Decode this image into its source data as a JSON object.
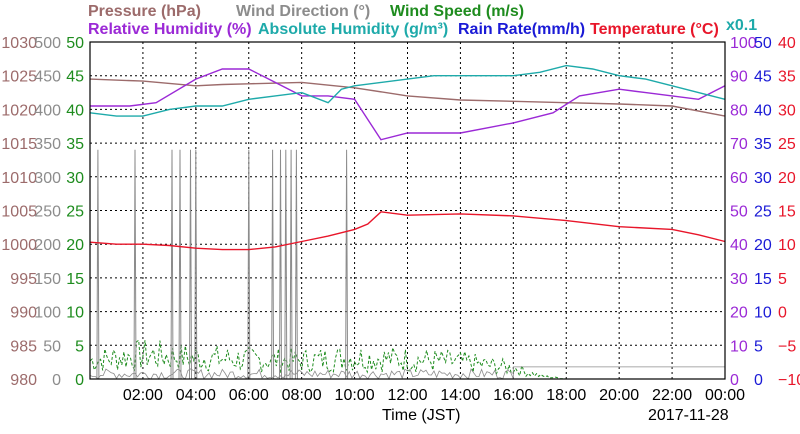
{
  "chart_data": {
    "type": "line",
    "xlabel": "Time (JST)",
    "date": "2017-11-28",
    "x_ticks": [
      "02:00",
      "04:00",
      "06:00",
      "08:00",
      "10:00",
      "12:00",
      "14:00",
      "16:00",
      "18:00",
      "20:00",
      "22:00",
      "00:00"
    ],
    "x_range_hours": [
      0,
      24
    ],
    "grid": true,
    "legend": {
      "row1": [
        {
          "label": "Pressure (hPa)",
          "color": "#9c6b6b"
        },
        {
          "label": "Wind Direction (°)",
          "color": "#8c8c8c"
        },
        {
          "label": "Wind Speed (m/s)",
          "color": "#1e8c1e"
        }
      ],
      "row2": [
        {
          "label": "Relative Humidity (%)",
          "color": "#9b29d6"
        },
        {
          "label": "Absolute Humidity (g/m³)",
          "color": "#1eaaaa"
        },
        {
          "label": "Rain Rate(mm/h)",
          "color": "#1a1ad6"
        },
        {
          "label": "Temperature (°C)",
          "color": "#e8162a"
        }
      ],
      "scale_note": "x0.1"
    },
    "axes": {
      "pressure": {
        "ticks": [
          "1030",
          "1025",
          "1020",
          "1015",
          "1010",
          "1005",
          "1000",
          "995",
          "990",
          "985",
          "980"
        ],
        "range": [
          980,
          1030
        ],
        "color": "#9c6b6b"
      },
      "wind_direction": {
        "ticks": [
          "500",
          "450",
          "400",
          "350",
          "300",
          "250",
          "200",
          "150",
          "100",
          "50",
          "0"
        ],
        "range": [
          0,
          500
        ],
        "color": "#8c8c8c"
      },
      "wind_speed": {
        "ticks": [
          "50",
          "45",
          "40",
          "35",
          "30",
          "25",
          "20",
          "15",
          "10",
          "5",
          "0"
        ],
        "range": [
          0,
          50
        ],
        "color": "#1e8c1e"
      },
      "relative_humidity": {
        "ticks": [
          "100",
          "90",
          "80",
          "70",
          "60",
          "50",
          "40",
          "30",
          "20",
          "10",
          "0"
        ],
        "range": [
          0,
          100
        ],
        "color": "#9b29d6"
      },
      "rain_rate": {
        "ticks": [
          "50",
          "45",
          "40",
          "35",
          "30",
          "25",
          "20",
          "15",
          "10",
          "5",
          "0"
        ],
        "range": [
          0,
          50
        ],
        "color": "#1a1ad6"
      },
      "temperature": {
        "ticks": [
          "40",
          "35",
          "30",
          "25",
          "20",
          "15",
          "10",
          "5",
          "0",
          "−5",
          "−10"
        ],
        "range": [
          -10,
          40
        ],
        "color": "#e8162a"
      }
    },
    "series": [
      {
        "name": "Pressure (hPa)",
        "axis": "pressure",
        "color": "#9c6b6b",
        "x": [
          0,
          2,
          4,
          5,
          6,
          8,
          10,
          12,
          14,
          16,
          18,
          20,
          22,
          24
        ],
        "y": [
          1024.5,
          1024.2,
          1023.5,
          1023.7,
          1023.8,
          1024,
          1023.2,
          1022,
          1021.4,
          1021.2,
          1021,
          1020.8,
          1020.5,
          1019
        ]
      },
      {
        "name": "Relative Humidity (%)",
        "axis": "relative_humidity",
        "color": "#9b29d6",
        "x": [
          0,
          1.5,
          2.5,
          4,
          5,
          6,
          7,
          8,
          9,
          10,
          10.5,
          11,
          12,
          14,
          16,
          17.5,
          18.5,
          20,
          21,
          22,
          23,
          24
        ],
        "y": [
          81,
          81,
          82,
          89,
          92,
          92,
          88,
          84,
          84,
          83,
          77,
          71,
          73,
          73,
          76,
          79,
          84,
          86,
          85,
          84,
          83,
          87
        ]
      },
      {
        "name": "Absolute Humidity (g/m³) x0.1",
        "axis": "relative_humidity",
        "color": "#1eaaaa",
        "x": [
          0,
          1,
          2,
          3,
          4,
          5,
          6,
          7,
          8,
          9,
          9.5,
          10,
          11,
          12,
          13,
          14,
          15,
          16,
          17,
          18,
          19,
          20,
          21,
          22,
          23,
          24
        ],
        "y": [
          79,
          78,
          78,
          80,
          81,
          81,
          83,
          84,
          85,
          82,
          86,
          87,
          88,
          89,
          90,
          90,
          90,
          90,
          91,
          93,
          92,
          90,
          89,
          87,
          85,
          83
        ]
      },
      {
        "name": "Temperature (°C)",
        "axis": "temperature",
        "color": "#e8162a",
        "x": [
          0,
          1,
          2,
          3,
          4,
          5,
          6,
          7,
          8,
          9,
          10,
          10.5,
          11,
          12,
          14,
          16,
          18,
          20,
          22,
          23,
          24
        ],
        "y": [
          10.3,
          10,
          10,
          9.8,
          9.4,
          9.2,
          9.2,
          9.6,
          10.4,
          11.2,
          12.2,
          13,
          14.8,
          14.3,
          14.5,
          14.2,
          13.5,
          12.6,
          12.2,
          11.4,
          10.4
        ]
      },
      {
        "name": "Wind Direction (°)",
        "axis": "wind_direction",
        "color": "#8c8c8c",
        "style": "spikes",
        "x": [
          0.3,
          1.7,
          3.1,
          3.4,
          3.8,
          4.0,
          6.0,
          6.9,
          7.2,
          7.4,
          7.6,
          7.8,
          9.7
        ],
        "y": [
          340,
          340,
          340,
          340,
          340,
          340,
          340,
          340,
          340,
          340,
          340,
          340,
          340
        ],
        "baseline": 5
      },
      {
        "name": "Wind Speed (m/s)",
        "axis": "wind_speed",
        "color": "#1e8c1e",
        "style": "dashed-noise",
        "x": [
          0,
          2,
          4,
          6,
          8,
          10,
          12,
          14,
          16,
          17,
          18,
          24
        ],
        "y": [
          3,
          4,
          3.5,
          3.2,
          3,
          3.5,
          3.2,
          2.8,
          1.8,
          0.5,
          0,
          0
        ]
      }
    ]
  }
}
